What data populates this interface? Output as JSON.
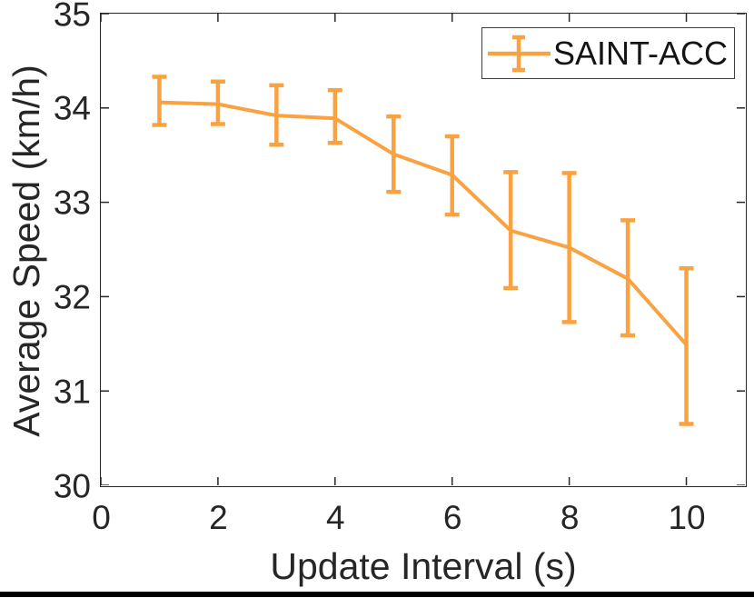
{
  "figure": {
    "background": "#ffffff",
    "bottom_bar_color": "#000000"
  },
  "legend": {
    "label": "SAINT-ACC",
    "position": "top-right",
    "border_color": "#3d3d3d",
    "marker": "errorbar-icon"
  },
  "chart_data": {
    "type": "line",
    "title": "",
    "xlabel": "Update Interval (s)",
    "ylabel": "Average Speed (km/h)",
    "xlim": [
      0,
      11
    ],
    "ylim": [
      30,
      35
    ],
    "xticks": [
      0,
      2,
      4,
      6,
      8,
      10
    ],
    "yticks": [
      30,
      31,
      32,
      33,
      34,
      35
    ],
    "grid": false,
    "box": true,
    "axis_color": "#262626",
    "text_color": "#262626",
    "legend_position": "top-right",
    "series": [
      {
        "name": "SAINT-ACC",
        "color": "#F9A242",
        "style": "line-with-errorbars",
        "x": [
          1,
          2,
          3,
          4,
          5,
          6,
          7,
          8,
          9,
          10
        ],
        "y": [
          34.06,
          34.04,
          33.92,
          33.89,
          33.51,
          33.29,
          32.7,
          32.52,
          32.19,
          31.49
        ],
        "y_upper": [
          34.33,
          34.28,
          34.24,
          34.19,
          33.91,
          33.7,
          33.32,
          33.31,
          32.81,
          32.3
        ],
        "y_lower": [
          33.82,
          33.83,
          33.61,
          33.63,
          33.11,
          32.87,
          32.09,
          31.73,
          31.59,
          30.65
        ]
      }
    ]
  }
}
